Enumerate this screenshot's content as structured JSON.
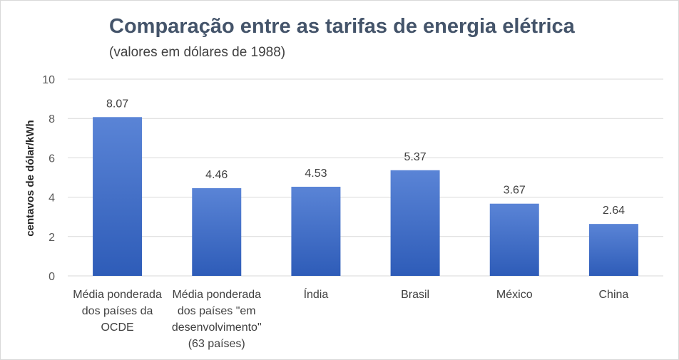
{
  "chart_data": {
    "type": "bar",
    "title": "Comparação entre as tarifas de energia elétrica",
    "subtitle": "(valores em dólares de 1988)",
    "xlabel": "",
    "ylabel": "centavos de dólar/kWh",
    "ylim": [
      0,
      10
    ],
    "yticks": [
      0,
      2,
      4,
      6,
      8,
      10
    ],
    "categories": [
      [
        "Média ponderada",
        "dos países da",
        "OCDE"
      ],
      [
        "Média ponderada",
        "dos países \"em",
        "desenvolvimento\"",
        "(63 países)"
      ],
      [
        "Índia"
      ],
      [
        "Brasil"
      ],
      [
        "México"
      ],
      [
        "China"
      ]
    ],
    "values": [
      8.07,
      4.46,
      4.53,
      5.37,
      3.67,
      2.64
    ],
    "data_labels": [
      "8.07",
      "4.46",
      "4.53",
      "5.37",
      "3.67",
      "2.64"
    ],
    "grid": true,
    "legend": "none",
    "bar_color_top": "#5a84d6",
    "bar_color_bottom": "#2e5cb8",
    "grid_color": "#d9d9d9"
  }
}
